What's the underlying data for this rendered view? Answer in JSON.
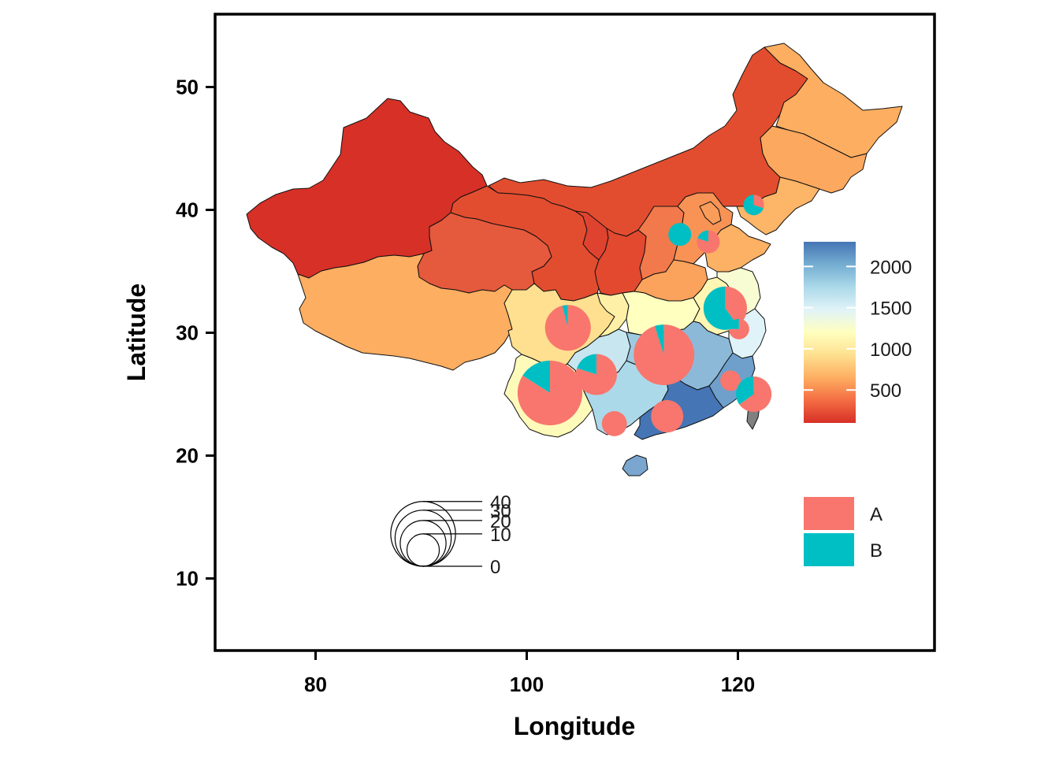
{
  "chart_data": {
    "type": "map",
    "xlabel": "Longitude",
    "ylabel": "Latitude",
    "xlim": [
      71,
      139
    ],
    "ylim": [
      4.3,
      56
    ],
    "x_ticks": [
      80,
      100,
      120
    ],
    "y_ticks": [
      10,
      20,
      30,
      40,
      50
    ],
    "colorbar": {
      "ticks": [
        500,
        1000,
        1500,
        2000
      ],
      "range": [
        100,
        2300
      ],
      "palette": [
        "#d73027",
        "#f46d43",
        "#fdae61",
        "#fee090",
        "#ffffbf",
        "#e0f3f8",
        "#abd9e9",
        "#74add1",
        "#4575b4"
      ]
    },
    "pie_legend": [
      {
        "label": "A",
        "color": "#f8766d"
      },
      {
        "label": "B",
        "color": "#00bfc4"
      }
    ],
    "size_legend": {
      "breaks": [
        0,
        10,
        20,
        30,
        40
      ]
    },
    "regions": [
      {
        "value": 150,
        "color": "#d73027"
      },
      {
        "value": 300,
        "color": "#e34d2f"
      },
      {
        "value": 300,
        "color": "#e34d2f"
      },
      {
        "value": 250,
        "color": "#df4330"
      },
      {
        "value": 350,
        "color": "#e5593d"
      },
      {
        "value": 280,
        "color": "#e2492f"
      },
      {
        "value": 480,
        "color": "#f2794b"
      },
      {
        "value": 550,
        "color": "#f99355"
      },
      {
        "value": 580,
        "color": "#fb9d5a"
      },
      {
        "value": 650,
        "color": "#fdae61"
      },
      {
        "value": 620,
        "color": "#fca85e"
      },
      {
        "value": 700,
        "color": "#fdb567"
      },
      {
        "value": 680,
        "color": "#fdb164"
      },
      {
        "value": 600,
        "color": "#fba35c"
      },
      {
        "value": 650,
        "color": "#fdae61"
      },
      {
        "value": 900,
        "color": "#fee090"
      },
      {
        "value": 1000,
        "color": "#fef0a6"
      },
      {
        "value": 1100,
        "color": "#ffffbf"
      },
      {
        "value": 1000,
        "color": "#fef6b2"
      },
      {
        "value": 1150,
        "color": "#f8fcd2"
      },
      {
        "value": 1050,
        "color": "#fefbba"
      },
      {
        "value": 1300,
        "color": "#e0f3f8"
      },
      {
        "value": 1450,
        "color": "#c7e6f0"
      },
      {
        "value": 1600,
        "color": "#abd9e9"
      },
      {
        "value": 1700,
        "color": "#9ecae1"
      },
      {
        "value": 1900,
        "color": "#8db9d9"
      },
      {
        "value": 2050,
        "color": "#6f9fcb"
      },
      {
        "value": 2200,
        "color": "#4575b4"
      },
      {
        "value": 1850,
        "color": "#7aa6cf"
      },
      {
        "value": null,
        "color": "#808080"
      }
    ],
    "pies": [
      {
        "lon": 102.2,
        "lat": 25.1,
        "size": 40,
        "A": 0.84,
        "B": 0.16
      },
      {
        "lon": 103.9,
        "lat": 30.4,
        "size": 20,
        "A": 0.96,
        "B": 0.04
      },
      {
        "lon": 106.6,
        "lat": 26.6,
        "size": 16,
        "A": 0.8,
        "B": 0.2
      },
      {
        "lon": 108.3,
        "lat": 22.6,
        "size": 6,
        "A": 1.0,
        "B": 0.0
      },
      {
        "lon": 113.0,
        "lat": 28.2,
        "size": 35,
        "A": 0.95,
        "B": 0.05
      },
      {
        "lon": 113.3,
        "lat": 23.2,
        "size": 10,
        "A": 1.0,
        "B": 0.0
      },
      {
        "lon": 114.3,
        "lat": 28.6,
        "size": 6,
        "A": 1.0,
        "B": 0.0
      },
      {
        "lon": 114.5,
        "lat": 38.0,
        "size": 5,
        "A": 0.0,
        "B": 1.0
      },
      {
        "lon": 117.2,
        "lat": 37.4,
        "size": 5,
        "A": 0.8,
        "B": 0.2
      },
      {
        "lon": 118.8,
        "lat": 32.0,
        "size": 18,
        "A": 0.4,
        "B": 0.6
      },
      {
        "lon": 120.1,
        "lat": 30.3,
        "size": 4,
        "A": 0.75,
        "B": 0.25
      },
      {
        "lon": 119.3,
        "lat": 26.1,
        "size": 4,
        "A": 1.0,
        "B": 0.0
      },
      {
        "lon": 121.5,
        "lat": 25.0,
        "size": 12,
        "A": 0.65,
        "B": 0.35
      },
      {
        "lon": 121.5,
        "lat": 40.4,
        "size": 4,
        "A": 0.3,
        "B": 0.7
      }
    ]
  }
}
